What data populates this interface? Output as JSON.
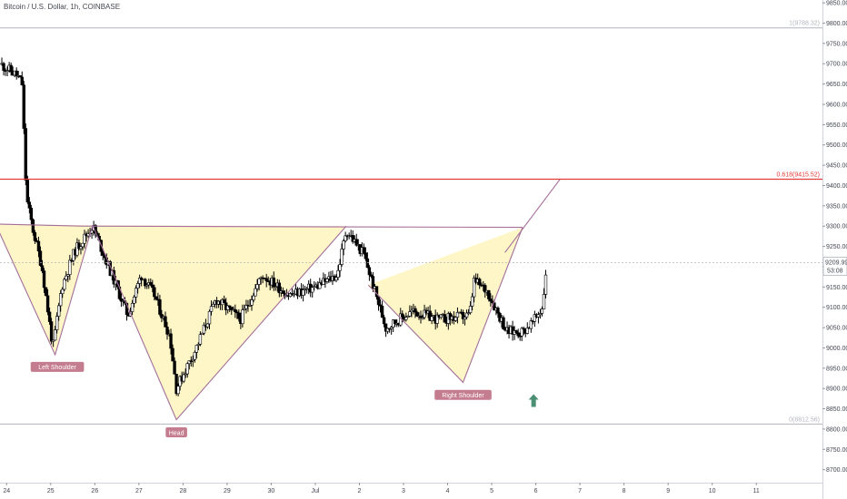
{
  "chart_data": {
    "type": "candlestick",
    "title": "Bitcoin / U.S. Dollar, 1h, COINBASE",
    "xaxis": {
      "ticks": [
        "24",
        "25",
        "26",
        "27",
        "28",
        "29",
        "30",
        "Jul",
        "2",
        "3",
        "4",
        "5",
        "6",
        "7",
        "8",
        "9",
        "10",
        "11"
      ],
      "range": [
        -0.15,
        18.5
      ]
    },
    "yaxis": {
      "ticks": [
        8700,
        8750,
        8800,
        8850,
        8900,
        8950,
        9000,
        9050,
        9100,
        9150,
        9200,
        9250,
        9300,
        9350,
        9400,
        9450,
        9500,
        9550,
        9600,
        9650,
        9700,
        9750,
        9800,
        9850
      ],
      "range": [
        8668,
        9857
      ],
      "position": "right"
    },
    "last_price": "9209.99",
    "countdown": "53:08",
    "levels": [
      {
        "label": "1(9788.32)",
        "value": 9788.32,
        "color": "#b2b5be"
      },
      {
        "label": "0.618(9415.52)",
        "value": 9415.52,
        "color": "#e53935"
      },
      {
        "label": "0(8812.56)",
        "value": 8812.56,
        "color": "#b2b5be"
      }
    ],
    "neckline": [
      [
        -0.25,
        9305
      ],
      [
        1.7,
        9300
      ],
      [
        11.7,
        9297
      ]
    ],
    "neckline_extension": [
      [
        11.3,
        9235
      ],
      [
        12.55,
        9415.52
      ]
    ],
    "pattern": [
      {
        "label": "Left Shoulder",
        "points": [
          [
            -0.25,
            9305
          ],
          [
            1.1,
            8983
          ],
          [
            1.95,
            9302
          ]
        ],
        "label_at": [
          1.15,
          8952
        ]
      },
      {
        "label": "Head",
        "points": [
          [
            1.95,
            9302
          ],
          [
            3.85,
            8823
          ],
          [
            7.7,
            9300
          ]
        ],
        "label_at": [
          3.85,
          8791
        ]
      },
      {
        "label": "Right Shoulder",
        "points": [
          [
            8.2,
            9155
          ],
          [
            10.35,
            8915
          ],
          [
            11.7,
            9297
          ]
        ],
        "label_at": [
          10.35,
          8883
        ]
      }
    ],
    "marker": {
      "name": "arrow-up",
      "x": 11.95,
      "y": 8886,
      "color": "#4a8f73"
    },
    "volume_shown": false
  },
  "colors": {
    "up": "#ffffff",
    "down": "#000000",
    "wick": "#000000",
    "pattern_fill": "#fff6c8",
    "pattern_line": "#a56e9b",
    "label_bg": "#c47c8f",
    "fib_red": "#e53935"
  },
  "label_texts": {
    "left_shoulder": "Left Shoulder",
    "head": "Head",
    "right_shoulder": "Right Shoulder"
  }
}
